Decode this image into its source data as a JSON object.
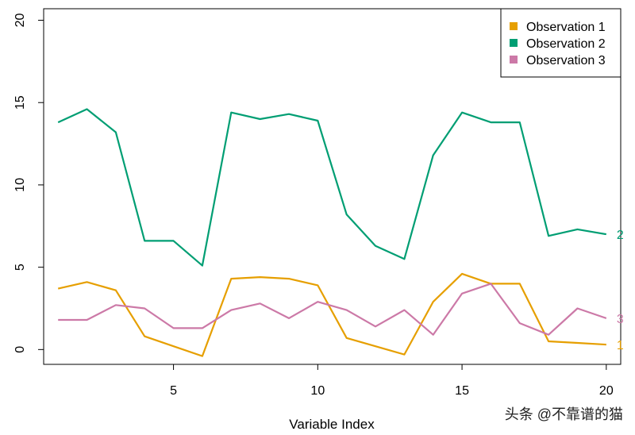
{
  "chart_data": {
    "type": "line",
    "title": "",
    "xlabel": "Variable Index",
    "ylabel": "",
    "xlim": [
      0.5,
      20.5
    ],
    "ylim": [
      -0.9,
      20.7
    ],
    "x_ticks": [
      5,
      10,
      15,
      20
    ],
    "y_ticks": [
      0,
      5,
      10,
      15,
      20
    ],
    "grid": false,
    "legend_position": "top-right",
    "x": [
      1,
      2,
      3,
      4,
      5,
      6,
      7,
      8,
      9,
      10,
      11,
      12,
      13,
      14,
      15,
      16,
      17,
      18,
      19,
      20
    ],
    "series": [
      {
        "name": "Observation 1",
        "end_label": "1",
        "color": "#E69F00",
        "values": [
          3.7,
          4.1,
          3.6,
          0.8,
          0.2,
          -0.4,
          4.3,
          4.4,
          4.3,
          3.9,
          0.7,
          0.2,
          -0.3,
          2.9,
          4.6,
          4.0,
          4.0,
          0.5,
          0.4,
          0.3
        ]
      },
      {
        "name": "Observation 2",
        "end_label": "2",
        "color": "#009E73",
        "values": [
          13.8,
          14.6,
          13.2,
          6.6,
          6.6,
          5.1,
          14.4,
          14.0,
          14.3,
          13.9,
          8.2,
          6.3,
          5.5,
          11.8,
          14.4,
          13.8,
          13.8,
          6.9,
          7.3,
          7.0
        ]
      },
      {
        "name": "Observation 3",
        "end_label": "3",
        "color": "#CC79A7",
        "values": [
          1.8,
          1.8,
          2.7,
          2.5,
          1.3,
          1.3,
          2.4,
          2.8,
          1.9,
          2.9,
          2.4,
          1.4,
          2.4,
          0.9,
          3.4,
          4.0,
          1.6,
          0.9,
          2.5,
          1.9
        ]
      }
    ]
  },
  "watermark": "头条 @不靠谱的猫"
}
